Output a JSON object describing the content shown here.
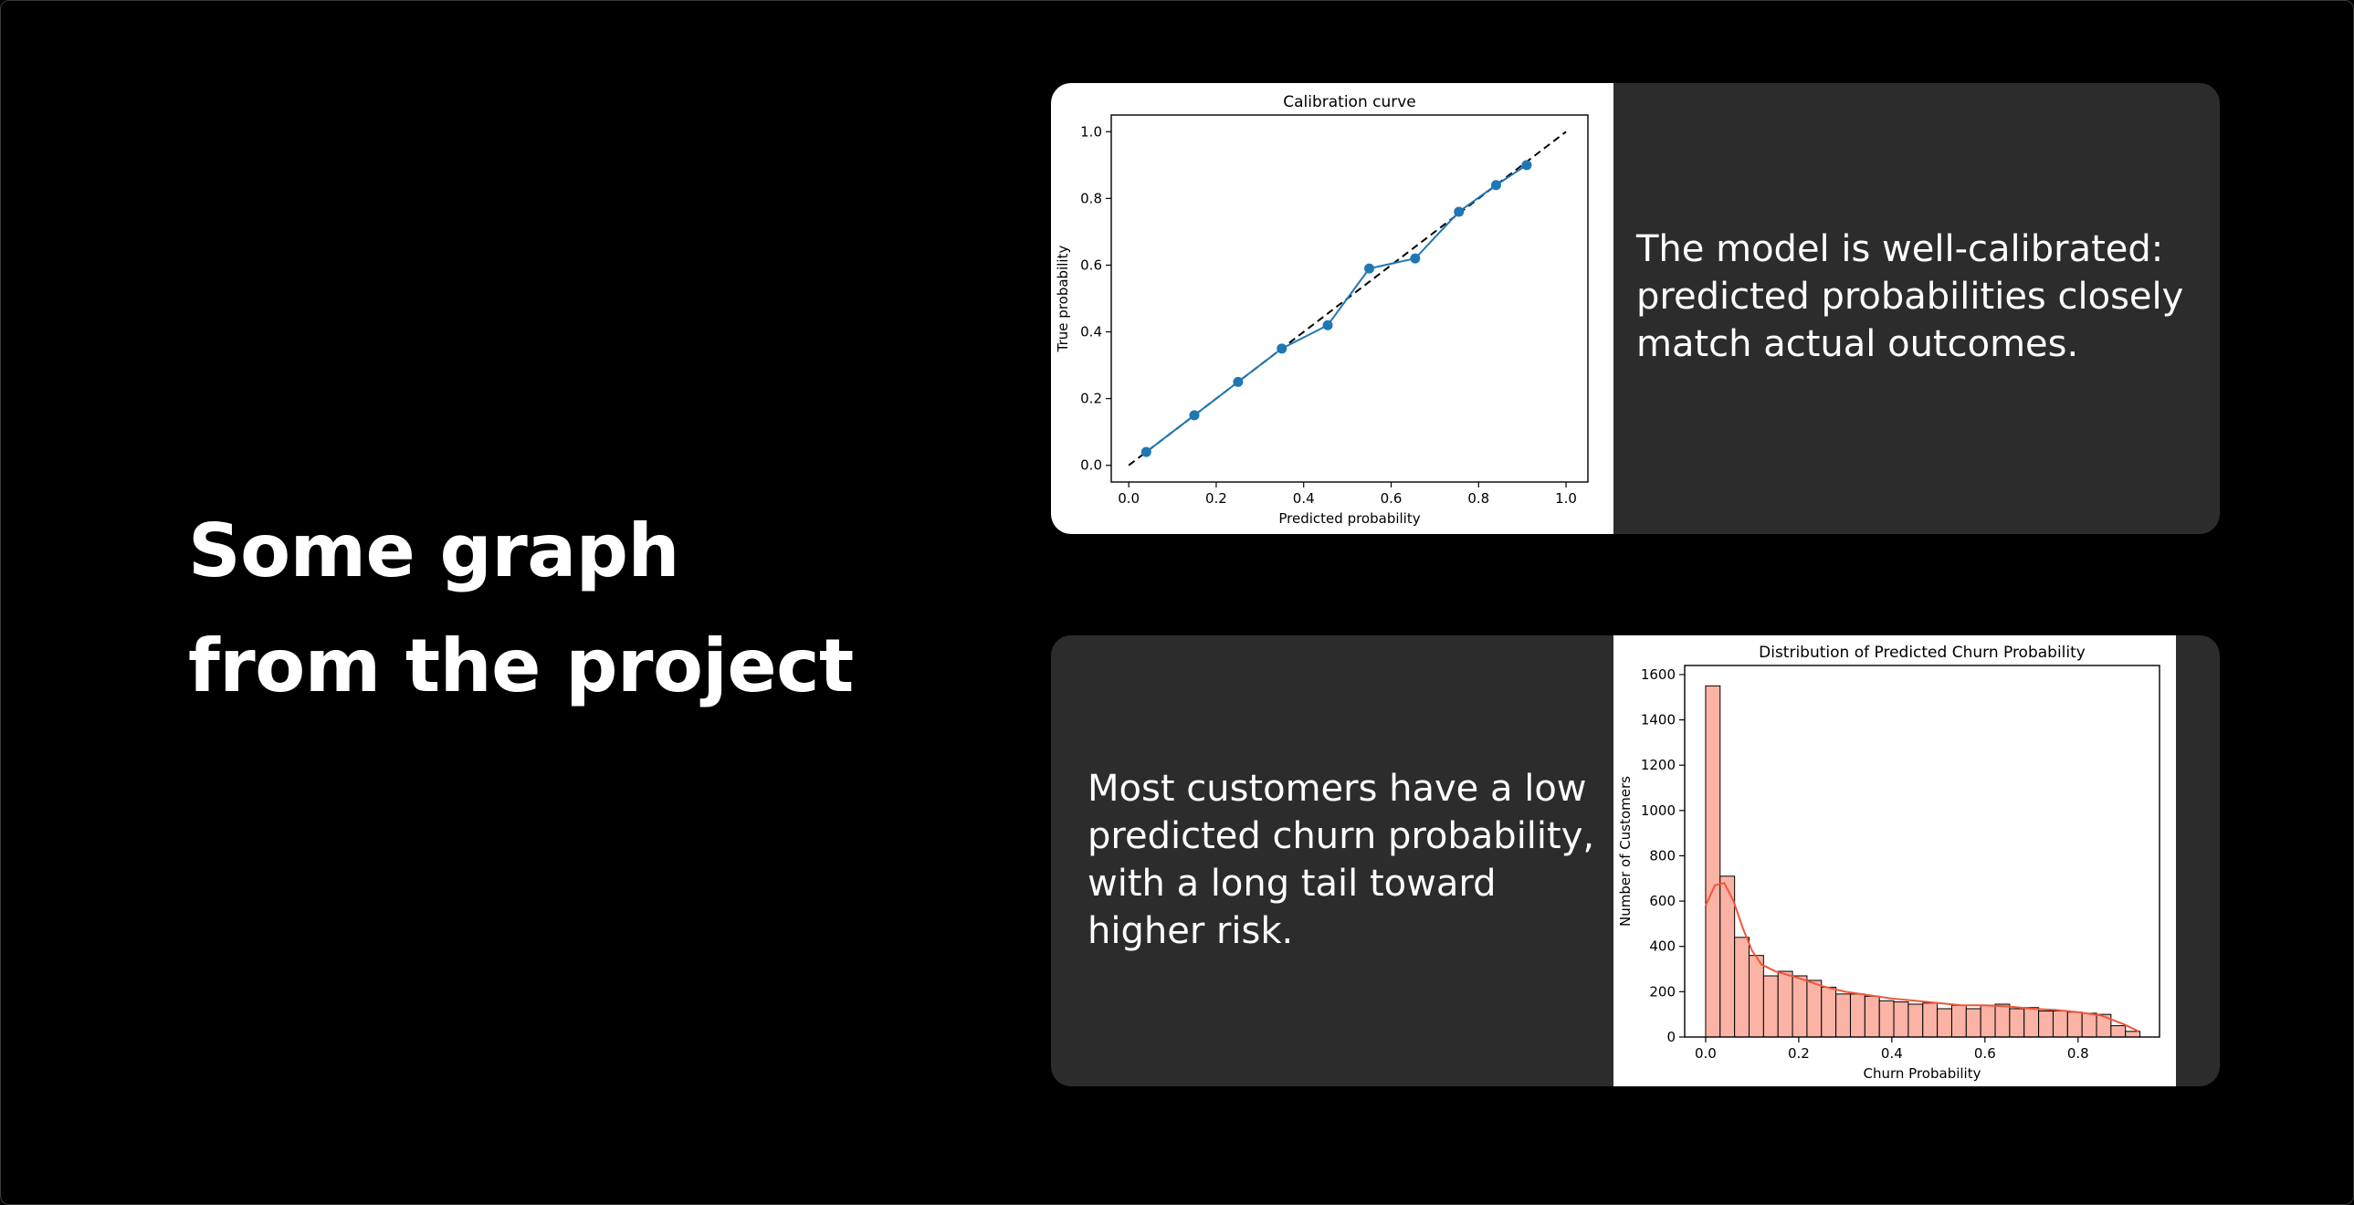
{
  "slide": {
    "headline": "Some graph from the project"
  },
  "cards": {
    "calibration": {
      "description": "The model is well-calibrated: predicted probabilities closely match actual outcomes."
    },
    "distribution": {
      "description": "Most customers have a low predicted churn probability, with a long tail toward higher risk."
    }
  },
  "chart_data": [
    {
      "type": "line",
      "title": "Calibration curve",
      "xlabel": "Predicted probability",
      "ylabel": "True probability",
      "xlim": [
        -0.04,
        1.05
      ],
      "ylim": [
        -0.05,
        1.05
      ],
      "xticks": [
        "0.0",
        "0.2",
        "0.4",
        "0.6",
        "0.8",
        "1.0"
      ],
      "yticks": [
        "0.0",
        "0.2",
        "0.4",
        "0.6",
        "0.8",
        "1.0"
      ],
      "reference_line": {
        "style": "dashed",
        "color": "#000000",
        "x": [
          0,
          1
        ],
        "y": [
          0,
          1
        ]
      },
      "series": [
        {
          "color": "#1f77b4",
          "x": [
            0.04,
            0.15,
            0.25,
            0.35,
            0.455,
            0.55,
            0.655,
            0.755,
            0.84,
            0.91
          ],
          "y": [
            0.04,
            0.15,
            0.25,
            0.35,
            0.42,
            0.59,
            0.62,
            0.76,
            0.84,
            0.9
          ]
        }
      ],
      "grid": false
    },
    {
      "type": "bar",
      "title": "Distribution of Predicted Churn Probability",
      "xlabel": "Churn Probability",
      "ylabel": "Number of Customers",
      "xlim": [
        -0.045,
        0.975
      ],
      "ylim": [
        0,
        1640
      ],
      "xticks": [
        "0.0",
        "0.2",
        "0.4",
        "0.6",
        "0.8"
      ],
      "yticks": [
        "0",
        "200",
        "400",
        "600",
        "800",
        "1000",
        "1200",
        "1400",
        "1600"
      ],
      "bin_edges": [
        0.0,
        0.0311,
        0.0622,
        0.0933,
        0.1244,
        0.1555,
        0.1866,
        0.2177,
        0.2488,
        0.2799,
        0.311,
        0.3421,
        0.3732,
        0.4043,
        0.4354,
        0.4665,
        0.4976,
        0.5287,
        0.5598,
        0.5909,
        0.622,
        0.6531,
        0.6842,
        0.7153,
        0.7464,
        0.7775,
        0.8086,
        0.8397,
        0.8708,
        0.9019,
        0.933
      ],
      "values": [
        1550,
        710,
        440,
        360,
        270,
        290,
        270,
        250,
        220,
        190,
        190,
        180,
        160,
        155,
        145,
        150,
        125,
        140,
        125,
        140,
        145,
        125,
        130,
        115,
        115,
        110,
        105,
        100,
        50,
        25
      ],
      "bar_color": "#fab3a5",
      "kde": {
        "color": "#f0573a",
        "x": [
          0.0,
          0.02,
          0.04,
          0.06,
          0.08,
          0.1,
          0.12,
          0.15,
          0.2,
          0.25,
          0.3,
          0.35,
          0.4,
          0.45,
          0.5,
          0.55,
          0.6,
          0.65,
          0.7,
          0.75,
          0.8,
          0.85,
          0.9,
          0.93
        ],
        "y": [
          580,
          670,
          680,
          600,
          480,
          380,
          320,
          290,
          260,
          225,
          200,
          185,
          170,
          160,
          150,
          140,
          140,
          135,
          125,
          120,
          110,
          95,
          55,
          25
        ]
      }
    }
  ]
}
